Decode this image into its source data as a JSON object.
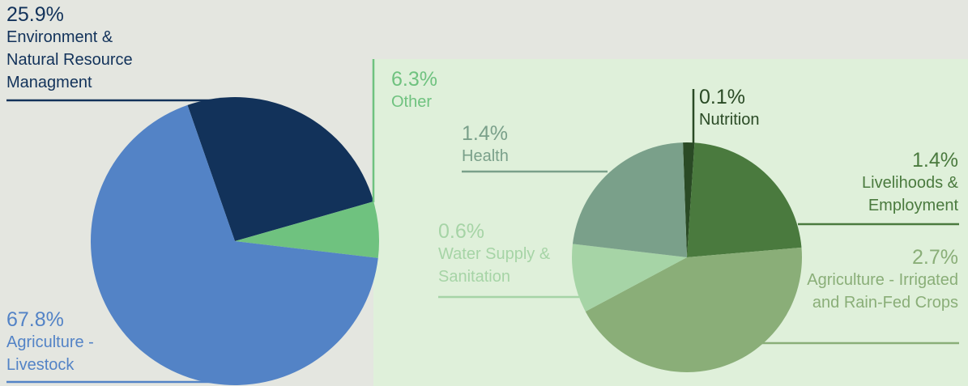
{
  "chart_data": [
    {
      "type": "pie",
      "categories": [
        "Environment & Natural Resource Managment",
        "Other",
        "Agriculture - Livestock"
      ],
      "values": [
        25.9,
        6.3,
        67.8
      ],
      "value_labels": [
        "25.9%",
        "6.3%",
        "67.8%"
      ],
      "colors": [
        "#12325a",
        "#6fc27f",
        "#5383c6"
      ]
    },
    {
      "type": "pie",
      "categories": [
        "Nutrition",
        "Livelihoods & Employment",
        "Agriculture - Irrigated and Rain-Fed Crops",
        "Water Supply & Sanitation",
        "Health"
      ],
      "values": [
        0.1,
        1.4,
        2.7,
        0.6,
        1.4
      ],
      "value_labels": [
        "0.1%",
        "1.4%",
        "2.7%",
        "0.6%",
        "1.4%"
      ],
      "colors": [
        "#2a4a25",
        "#4a7a3e",
        "#8aae78",
        "#a6d4a6",
        "#7aa08a"
      ]
    }
  ]
}
